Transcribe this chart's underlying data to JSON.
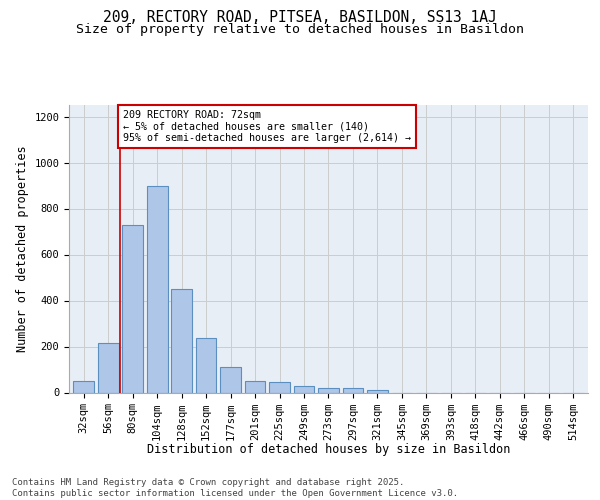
{
  "title_line1": "209, RECTORY ROAD, PITSEA, BASILDON, SS13 1AJ",
  "title_line2": "Size of property relative to detached houses in Basildon",
  "xlabel": "Distribution of detached houses by size in Basildon",
  "ylabel": "Number of detached properties",
  "categories": [
    "32sqm",
    "56sqm",
    "80sqm",
    "104sqm",
    "128sqm",
    "152sqm",
    "177sqm",
    "201sqm",
    "225sqm",
    "249sqm",
    "273sqm",
    "297sqm",
    "321sqm",
    "345sqm",
    "369sqm",
    "393sqm",
    "418sqm",
    "442sqm",
    "466sqm",
    "490sqm",
    "514sqm"
  ],
  "values": [
    50,
    215,
    730,
    900,
    450,
    235,
    110,
    50,
    45,
    30,
    20,
    20,
    10,
    0,
    0,
    0,
    0,
    0,
    0,
    0,
    0
  ],
  "bar_color": "#aec6e8",
  "bar_edge_color": "#5a8fc0",
  "vline_x": 1.5,
  "vline_color": "#cc0000",
  "annotation_text": "209 RECTORY ROAD: 72sqm\n← 5% of detached houses are smaller (140)\n95% of semi-detached houses are larger (2,614) →",
  "annotation_box_color": "#cc0000",
  "ylim": [
    0,
    1250
  ],
  "yticks": [
    0,
    200,
    400,
    600,
    800,
    1000,
    1200
  ],
  "grid_color": "#cccccc",
  "bg_color": "#e8eef5",
  "footnote": "Contains HM Land Registry data © Crown copyright and database right 2025.\nContains public sector information licensed under the Open Government Licence v3.0.",
  "title_fontsize": 10.5,
  "subtitle_fontsize": 9.5,
  "axis_label_fontsize": 8.5,
  "tick_fontsize": 7.5,
  "footnote_fontsize": 6.5
}
